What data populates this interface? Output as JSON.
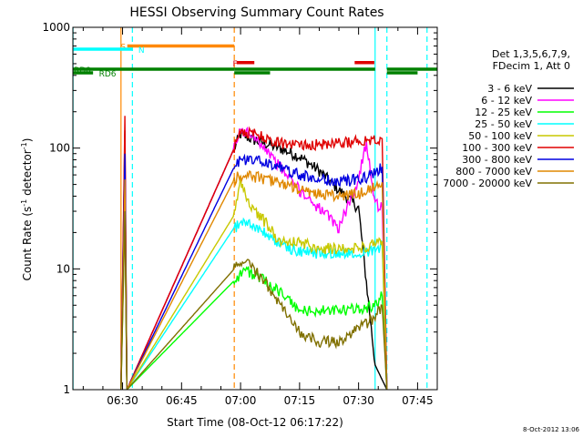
{
  "chart_data": {
    "type": "line",
    "title": "HESSI Observing Summary Count Rates",
    "xlabel": "Start Time (08-Oct-12 06:17:22)",
    "ylabel_main": "Count Rate (s",
    "ylabel_sup": "-1",
    "ylabel_mid": " detector",
    "ylabel_close": ")",
    "ylog": true,
    "ylim": [
      1,
      1000
    ],
    "xlim": [
      17.37,
      110
    ],
    "x_unit": "minutes after 06:00 UT",
    "x_ticks": [
      {
        "x": 30,
        "label": "06:30"
      },
      {
        "x": 45,
        "label": "06:45"
      },
      {
        "x": 60,
        "label": "07:00"
      },
      {
        "x": 75,
        "label": "07:15"
      },
      {
        "x": 90,
        "label": "07:30"
      },
      {
        "x": 105,
        "label": "07:45"
      }
    ],
    "y_ticks": [
      {
        "y": 1,
        "label": "1"
      },
      {
        "y": 10,
        "label": "10"
      },
      {
        "y": 100,
        "label": "100"
      },
      {
        "y": 1000,
        "label": "1000"
      }
    ],
    "legend_header": [
      "Det 1,3,5,6,7,9,",
      "FDecim 1, Att 0"
    ],
    "series": [
      {
        "name": "3 - 6 keV",
        "color": "#000000",
        "points": [
          [
            29.6,
            1
          ],
          [
            30.6,
            140
          ],
          [
            31.1,
            1
          ],
          [
            58.4,
            100
          ],
          [
            60,
            130
          ],
          [
            64,
            115
          ],
          [
            70,
            100
          ],
          [
            75,
            85
          ],
          [
            80,
            65
          ],
          [
            85,
            45
          ],
          [
            90,
            32
          ],
          [
            94.2,
            1.6
          ],
          [
            97.2,
            1
          ]
        ]
      },
      {
        "name": "6 - 12 keV",
        "color": "#ff00ff",
        "points": [
          [
            29.6,
            1
          ],
          [
            30.6,
            110
          ],
          [
            31.1,
            1
          ],
          [
            58.4,
            100
          ],
          [
            60,
            140
          ],
          [
            64,
            125
          ],
          [
            70,
            70
          ],
          [
            75,
            45
          ],
          [
            80,
            32
          ],
          [
            85,
            22
          ],
          [
            90,
            55
          ],
          [
            92,
            115
          ],
          [
            94.2,
            35
          ],
          [
            96,
            32
          ],
          [
            97.2,
            1
          ]
        ]
      },
      {
        "name": "12 - 25 keV",
        "color": "#00ff00",
        "points": [
          [
            29.6,
            1
          ],
          [
            30.6,
            40
          ],
          [
            31.1,
            1
          ],
          [
            58.4,
            8
          ],
          [
            61,
            10
          ],
          [
            66,
            8
          ],
          [
            70,
            6.5
          ],
          [
            75,
            4.5
          ],
          [
            80,
            4.5
          ],
          [
            85,
            4.5
          ],
          [
            90,
            4.7
          ],
          [
            94.2,
            5
          ],
          [
            96,
            6
          ],
          [
            97.2,
            1
          ]
        ]
      },
      {
        "name": "25 - 50 keV",
        "color": "#00ffff",
        "points": [
          [
            29.6,
            1
          ],
          [
            30.6,
            35
          ],
          [
            31.1,
            1
          ],
          [
            58.4,
            22
          ],
          [
            61,
            25
          ],
          [
            64,
            22
          ],
          [
            70,
            16
          ],
          [
            75,
            14
          ],
          [
            80,
            13.5
          ],
          [
            85,
            13.5
          ],
          [
            90,
            14
          ],
          [
            94.2,
            14
          ],
          [
            96,
            16
          ],
          [
            97.2,
            1
          ]
        ]
      },
      {
        "name": "50 - 100 keV",
        "color": "#c8c800",
        "points": [
          [
            29.6,
            1
          ],
          [
            30.6,
            30
          ],
          [
            31.1,
            1
          ],
          [
            58.4,
            28
          ],
          [
            60,
            55
          ],
          [
            62,
            35
          ],
          [
            66,
            25
          ],
          [
            70,
            17
          ],
          [
            75,
            16.5
          ],
          [
            80,
            15
          ],
          [
            85,
            14.5
          ],
          [
            90,
            15
          ],
          [
            94.2,
            16
          ],
          [
            96,
            17
          ],
          [
            97.2,
            1
          ]
        ]
      },
      {
        "name": "100 - 300 keV",
        "color": "#e00000",
        "points": [
          [
            29.6,
            1
          ],
          [
            30.6,
            185
          ],
          [
            31.1,
            1
          ],
          [
            58.4,
            100
          ],
          [
            60,
            140
          ],
          [
            64,
            130
          ],
          [
            70,
            110
          ],
          [
            75,
            108
          ],
          [
            80,
            108
          ],
          [
            85,
            110
          ],
          [
            90,
            115
          ],
          [
            94.2,
            120
          ],
          [
            96,
            120
          ],
          [
            97.2,
            1
          ]
        ]
      },
      {
        "name": "300 - 800 keV",
        "color": "#0000e0",
        "points": [
          [
            29.6,
            1
          ],
          [
            30.6,
            90
          ],
          [
            31.1,
            1
          ],
          [
            58.4,
            70
          ],
          [
            60,
            80
          ],
          [
            64,
            80
          ],
          [
            70,
            70
          ],
          [
            75,
            60
          ],
          [
            80,
            55
          ],
          [
            85,
            53
          ],
          [
            90,
            55
          ],
          [
            94.2,
            62
          ],
          [
            96,
            70
          ],
          [
            97.2,
            1
          ]
        ]
      },
      {
        "name": "800 - 7000 keV",
        "color": "#e08800",
        "points": [
          [
            29.6,
            1
          ],
          [
            30.6,
            55
          ],
          [
            31.1,
            1
          ],
          [
            58.4,
            55
          ],
          [
            60,
            60
          ],
          [
            64,
            58
          ],
          [
            70,
            52
          ],
          [
            75,
            45
          ],
          [
            80,
            42
          ],
          [
            85,
            40
          ],
          [
            90,
            42
          ],
          [
            94.2,
            48
          ],
          [
            96,
            52
          ],
          [
            97.2,
            1
          ]
        ]
      },
      {
        "name": "7000 - 20000 keV",
        "color": "#807000",
        "points": [
          [
            29.6,
            1
          ],
          [
            30.6,
            30
          ],
          [
            31.1,
            1
          ],
          [
            58.4,
            10
          ],
          [
            61,
            12
          ],
          [
            66,
            8
          ],
          [
            70,
            5
          ],
          [
            75,
            3
          ],
          [
            80,
            2.5
          ],
          [
            85,
            2.5
          ],
          [
            90,
            3.2
          ],
          [
            94.2,
            4
          ],
          [
            96,
            5
          ],
          [
            97.2,
            1
          ]
        ]
      }
    ],
    "flags": [
      {
        "label": "S",
        "color": "#ff8800",
        "y": 700,
        "x": [
          31.2,
          58.4
        ],
        "label_x": 29.5
      },
      {
        "label": "N",
        "color": "#00ffff",
        "y": 660,
        "x": [
          17.4,
          32.5
        ],
        "label_x": 34
      },
      {
        "label": "F",
        "color": "#e00000",
        "y": 510,
        "x": [
          59,
          63.5
        ],
        "label_x": 58,
        "extra": [
          [
            89,
            94
          ]
        ]
      },
      {
        "label": "RD0",
        "color": "#008000",
        "y": 450,
        "x": [
          17.4,
          58.4
        ],
        "label_x": 17.6,
        "extra": [
          [
            58.4,
            94.2
          ],
          [
            97.2,
            110
          ]
        ]
      },
      {
        "label": "RD6",
        "color": "#008000",
        "y": 420,
        "x": [
          17.4,
          22.5
        ],
        "label_x": 24,
        "extra": [
          [
            58.4,
            67.5
          ],
          [
            97.2,
            105
          ]
        ]
      }
    ],
    "vlines": [
      {
        "x": 17.4,
        "color": "#00ffff",
        "dashed": false
      },
      {
        "x": 32.5,
        "color": "#00ffff",
        "dashed": true
      },
      {
        "x": 29.6,
        "color": "#ff8800",
        "dashed": false
      },
      {
        "x": 58.4,
        "color": "#ff8800",
        "dashed": true
      },
      {
        "x": 94.2,
        "color": "#00ffff",
        "dashed": false
      },
      {
        "x": 97.2,
        "color": "#00ffff",
        "dashed": true
      },
      {
        "x": 107.4,
        "color": "#00ffff",
        "dashed": true
      }
    ],
    "grid": false,
    "legend_position": "right"
  },
  "footer_date": "8-Oct-2012 13:06"
}
